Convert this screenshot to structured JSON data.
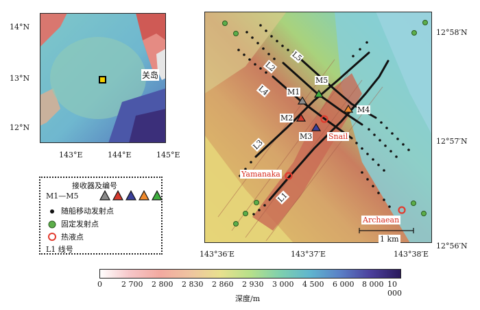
{
  "inset": {
    "place_label": "关岛",
    "lat_labels": [
      "14°N",
      "13°N",
      "12°N"
    ],
    "lon_labels": [
      "143°E",
      "144°E",
      "145°E"
    ]
  },
  "main_map": {
    "lat_labels": [
      "12°58′N",
      "12°57′N",
      "12°56′N"
    ],
    "lon_labels": [
      "143°36′E",
      "143°37′E",
      "143°38′E"
    ],
    "scale_label": "1 km",
    "line_labels": [
      "L1",
      "L2",
      "L3",
      "L4",
      "L5"
    ],
    "receiver_labels": [
      "M1",
      "M2",
      "M3",
      "M4",
      "M5"
    ],
    "vent_labels": [
      "Yamanaka",
      "Snail",
      "Archaean"
    ]
  },
  "legend": {
    "title": "接收器及编号",
    "receivers_label": "M1—M5",
    "receiver_colors": [
      "#8a8a8a",
      "#d63a2e",
      "#3a3f9a",
      "#f08a2c",
      "#3fae3f"
    ],
    "ship_source": "随船移动发射点",
    "fixed_source": "固定发射点",
    "vent": "热液点",
    "line_id": "L1  线号"
  },
  "colorbar": {
    "ticks": [
      "0",
      "2 700",
      "2 800",
      "2 830",
      "2 860",
      "2 930",
      "3 000",
      "4 500",
      "6 000",
      "8 000",
      "10 000"
    ],
    "label": "深度/m",
    "colors": [
      "#ffffff",
      "#f6c6c8",
      "#f3a9a0",
      "#efc4a0",
      "#e8e08e",
      "#b7e08a",
      "#7ed0ae",
      "#5fb5cf",
      "#5a7fc6",
      "#4b3f9c",
      "#2a1a5c"
    ]
  }
}
